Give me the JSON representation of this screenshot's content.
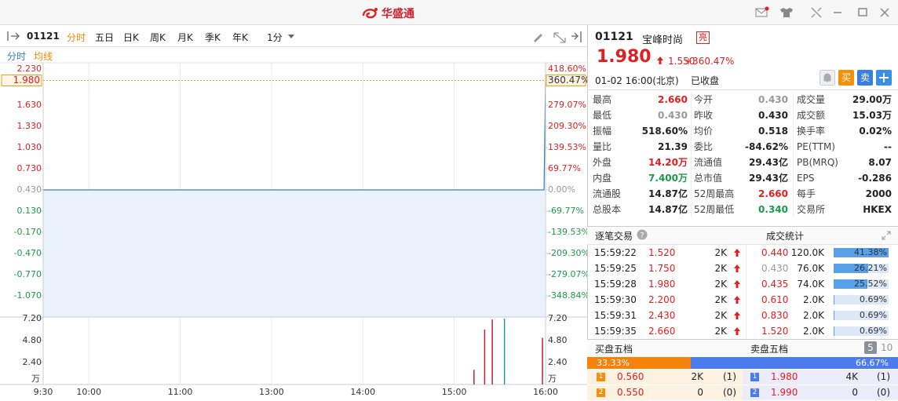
{
  "title_bar": {
    "app_name": "华盛通"
  },
  "toolbar": {
    "symbol": "01121",
    "tabs": [
      "分时",
      "五日",
      "日K",
      "周K",
      "月K",
      "季K",
      "年K"
    ],
    "interval": "1分"
  },
  "chart_tabs": [
    "分时",
    "均线"
  ],
  "chart_data": {
    "type": "line",
    "x": [
      0,
      329,
      330
    ],
    "values": [
      0.43,
      0.43,
      1.98
    ],
    "color": "#3a7fc1",
    "fill": "#eaf3fb",
    "xlim": [
      0,
      330
    ],
    "xticks": [
      {
        "value": 0,
        "label": "9:30"
      },
      {
        "value": 30,
        "label": "10:00"
      },
      {
        "value": 90,
        "label": "11:00"
      },
      {
        "value": 150,
        "label": "13:00"
      },
      {
        "value": 210,
        "label": "14:00"
      },
      {
        "value": 270,
        "label": "15:00"
      },
      {
        "value": 330,
        "label": "16:00"
      }
    ],
    "ylim": [
      -1.37,
      2.23
    ],
    "yticks": [
      {
        "value": 2.23,
        "label": "2.230"
      },
      {
        "value": 1.63,
        "label": "1.630"
      },
      {
        "value": 1.33,
        "label": "1.330"
      },
      {
        "value": 1.03,
        "label": "1.030"
      },
      {
        "value": 0.73,
        "label": "0.730"
      },
      {
        "value": 0.43,
        "label": "0.430"
      },
      {
        "value": 0.13,
        "label": "0.130"
      },
      {
        "value": -0.17,
        "label": "-0.170"
      },
      {
        "value": -0.47,
        "label": "-0.470"
      },
      {
        "value": -0.77,
        "label": "-0.770"
      },
      {
        "value": -1.07,
        "label": "-1.070"
      }
    ],
    "y2lim": [
      -418.6,
      418.6
    ],
    "y2ticks": [
      {
        "value": 418.6,
        "label": "418.60%"
      },
      {
        "value": 279.07,
        "label": "279.07%"
      },
      {
        "value": 209.3,
        "label": "209.30%"
      },
      {
        "value": 139.53,
        "label": "139.53%"
      },
      {
        "value": 69.77,
        "label": "69.77%"
      },
      {
        "value": 0,
        "label": "0.00%"
      },
      {
        "value": -69.77,
        "label": "-69.77%"
      },
      {
        "value": -139.53,
        "label": "-139.53%"
      },
      {
        "value": -209.3,
        "label": "-209.30%"
      },
      {
        "value": -279.07,
        "label": "-279.07%"
      },
      {
        "value": -348.84,
        "label": "-348.84%"
      }
    ],
    "base_value": 0.43,
    "last_price": {
      "value": 1.98,
      "label": "1.980",
      "pct": 360.47,
      "pct_label": "360.47%",
      "color": "#f0a020"
    },
    "volume": {
      "x": [
        283,
        290,
        295,
        303,
        328
      ],
      "values": [
        1.6,
        6.0,
        7.1,
        7.2,
        5.1
      ],
      "colors": [
        "#c0203a",
        "#c0203a",
        "#c0203a",
        "#2a9a9a",
        "#c0203a"
      ],
      "ylim": [
        0,
        7.2
      ],
      "yticks": [
        {
          "value": 7.2,
          "label": "7.20"
        },
        {
          "value": 4.8,
          "label": "4.80"
        },
        {
          "value": 2.4,
          "label": "2.40"
        }
      ],
      "unit": "万"
    }
  },
  "quote": {
    "symbol": "01121",
    "name": "宝峰时尚",
    "badge": "亮",
    "price": "1.980",
    "change": "1.550",
    "change_pct": "+360.47%",
    "time": "01-02 16:00(北京)",
    "status": "已收盘",
    "buy_button": "买",
    "sell_button": "卖"
  },
  "stats": [
    [
      {
        "label": "最高",
        "value": "2.660",
        "color": "#e02020"
      },
      {
        "label": "今开",
        "value": "0.430",
        "color": "#999999"
      },
      {
        "label": "成交量",
        "value": "29.00万",
        "color": "#222222"
      }
    ],
    [
      {
        "label": "最低",
        "value": "0.430",
        "color": "#999999"
      },
      {
        "label": "昨收",
        "value": "0.430",
        "color": "#222222"
      },
      {
        "label": "成交额",
        "value": "15.03万",
        "color": "#222222"
      }
    ],
    [
      {
        "label": "振幅",
        "value": "518.60%",
        "color": "#222222"
      },
      {
        "label": "均价",
        "value": "0.518",
        "color": "#222222"
      },
      {
        "label": "换手率",
        "value": "0.02%",
        "color": "#222222"
      }
    ],
    [
      {
        "label": "量比",
        "value": "21.39",
        "color": "#222222"
      },
      {
        "label": "委比",
        "value": "-84.62%",
        "color": "#222222"
      },
      {
        "label": "PE(TTM)",
        "value": "--",
        "color": "#222222"
      }
    ],
    [
      {
        "label": "外盘",
        "value": "14.20万",
        "color": "#e02020"
      },
      {
        "label": "流通值",
        "value": "29.43亿",
        "color": "#222222"
      },
      {
        "label": "PB(MRQ)",
        "value": "8.07",
        "color": "#222222"
      }
    ],
    [
      {
        "label": "内盘",
        "value": "7.400万",
        "color": "#1a9a4a"
      },
      {
        "label": "总市值",
        "value": "29.43亿",
        "color": "#222222"
      },
      {
        "label": "EPS",
        "value": "-0.286",
        "color": "#222222"
      }
    ],
    [
      {
        "label": "流通股",
        "value": "14.87亿",
        "color": "#222222"
      },
      {
        "label": "52周最高",
        "value": "2.660",
        "color": "#e02020"
      },
      {
        "label": "每手",
        "value": "2000",
        "color": "#222222"
      }
    ],
    [
      {
        "label": "总股本",
        "value": "14.87亿",
        "color": "#222222"
      },
      {
        "label": "52周最低",
        "value": "0.340",
        "color": "#1a9a4a"
      },
      {
        "label": "交易所",
        "value": "HKEX",
        "color": "#222222"
      }
    ]
  ],
  "trades": {
    "title": "逐笔交易",
    "rows": [
      {
        "time": "15:59:22",
        "price": "1.520",
        "volume": "2K"
      },
      {
        "time": "15:59:25",
        "price": "1.750",
        "volume": "2K"
      },
      {
        "time": "15:59:28",
        "price": "1.980",
        "volume": "2K"
      },
      {
        "time": "15:59:30",
        "price": "2.200",
        "volume": "2K"
      },
      {
        "time": "15:59:31",
        "price": "2.430",
        "volume": "2K"
      },
      {
        "time": "15:59:35",
        "price": "2.660",
        "volume": "2K"
      }
    ]
  },
  "trade_stats": {
    "title": "成交统计",
    "rows": [
      {
        "price": "0.440",
        "volume": "120.0K",
        "pct": 41.38,
        "pct_label": "41.38%",
        "color": "#e02020"
      },
      {
        "price": "0.430",
        "volume": "76.0K",
        "pct": 26.21,
        "pct_label": "26.21%",
        "color": "#999999"
      },
      {
        "price": "0.435",
        "volume": "74.0K",
        "pct": 25.52,
        "pct_label": "25.52%",
        "color": "#e02020"
      },
      {
        "price": "0.610",
        "volume": "2.0K",
        "pct": 0.69,
        "pct_label": "0.69%",
        "color": "#e02020"
      },
      {
        "price": "0.830",
        "volume": "2.0K",
        "pct": 0.69,
        "pct_label": "0.69%",
        "color": "#e02020"
      },
      {
        "price": "1.520",
        "volume": "2.0K",
        "pct": 0.69,
        "pct_label": "0.69%",
        "color": "#e02020"
      }
    ]
  },
  "order_book": {
    "buy_title": "买盘五档",
    "sell_title": "卖盘五档",
    "depth_options": [
      "5",
      "10"
    ],
    "buy_ratio": {
      "value": 33.33,
      "label": "33.33%"
    },
    "sell_ratio": {
      "value": 66.67,
      "label": "66.67%"
    },
    "bids": [
      {
        "level": "1",
        "price": "0.560",
        "volume": "2K",
        "orders": "(1)"
      },
      {
        "level": "2",
        "price": "0.550",
        "volume": "0",
        "orders": "(0)"
      }
    ],
    "asks": [
      {
        "level": "1",
        "price": "1.980",
        "volume": "4K",
        "orders": "(1)"
      },
      {
        "level": "2",
        "price": "1.990",
        "volume": "0",
        "orders": "(0)"
      }
    ]
  }
}
